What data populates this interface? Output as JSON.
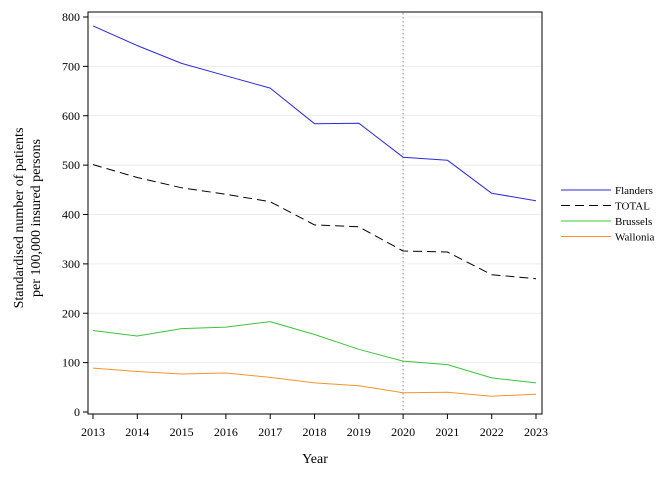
{
  "chart_data": {
    "type": "line",
    "xlabel": "Year",
    "ylabel_lines": [
      "Standardised number of patients",
      "per 100,000 insured persons"
    ],
    "x": [
      2013,
      2014,
      2015,
      2016,
      2017,
      2018,
      2019,
      2020,
      2021,
      2022,
      2023
    ],
    "xlim": [
      2013,
      2023
    ],
    "ylim": [
      0,
      800
    ],
    "yticks": [
      0,
      100,
      200,
      300,
      400,
      500,
      600,
      700,
      800
    ],
    "grid": "horizontal",
    "legend_position": "right",
    "reference_line": {
      "x": 2020,
      "style": "dotted",
      "color": "#c9a0b0"
    },
    "series": [
      {
        "name": "Flanders",
        "color": "#2b2bd6",
        "dash": "solid",
        "values": [
          782,
          742,
          706,
          681,
          656,
          584,
          585,
          516,
          510,
          443,
          428
        ]
      },
      {
        "name": "TOTAL",
        "color": "#000000",
        "dash": "dashed",
        "values": [
          501,
          475,
          454,
          441,
          426,
          379,
          375,
          326,
          324,
          278,
          270
        ]
      },
      {
        "name": "Brussels",
        "color": "#3cc43c",
        "dash": "solid",
        "values": [
          165,
          154,
          169,
          172,
          183,
          157,
          127,
          103,
          96,
          69,
          59
        ]
      },
      {
        "name": "Wallonia",
        "color": "#f0962a",
        "dash": "solid",
        "values": [
          89,
          82,
          77,
          79,
          70,
          59,
          53,
          39,
          40,
          32,
          36
        ]
      }
    ]
  }
}
